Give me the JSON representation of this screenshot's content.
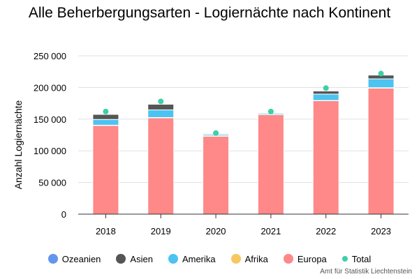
{
  "chart_data": {
    "type": "bar",
    "stacked": true,
    "title": "Alle Beherbergungsarten - Logiernächte nach Kontinent",
    "ylabel": "Anzahl Logiernächte",
    "xlabel": "",
    "ylim": [
      0,
      250000
    ],
    "yticks": [
      "0",
      "50 000",
      "100 000",
      "150 000",
      "200 000",
      "250 000"
    ],
    "ytick_values": [
      0,
      50000,
      100000,
      150000,
      200000,
      250000
    ],
    "categories": [
      "2018",
      "2019",
      "2020",
      "2021",
      "2022",
      "2023"
    ],
    "grid": true,
    "legend_position": "bottom",
    "series": [
      {
        "name": "Ozeanien",
        "color": "#6495ed",
        "values": [
          500,
          600,
          200,
          200,
          500,
          600
        ]
      },
      {
        "name": "Asien",
        "color": "#555555",
        "values": [
          8000,
          9000,
          1500,
          1000,
          5000,
          6000
        ]
      },
      {
        "name": "Amerika",
        "color": "#4cc3f0",
        "values": [
          9000,
          12000,
          2000,
          2000,
          10000,
          14000
        ]
      },
      {
        "name": "Afrika",
        "color": "#f5c860",
        "values": [
          500,
          600,
          300,
          300,
          500,
          600
        ]
      },
      {
        "name": "Europa",
        "color": "#ff8888",
        "values": [
          140000,
          152000,
          123000,
          157000,
          179000,
          199000
        ]
      }
    ],
    "total": {
      "name": "Total",
      "color": "#3ecfa8",
      "values": [
        162000,
        178000,
        128000,
        162000,
        199000,
        222000
      ]
    },
    "source": "Amt für Statistik Liechtenstein"
  }
}
